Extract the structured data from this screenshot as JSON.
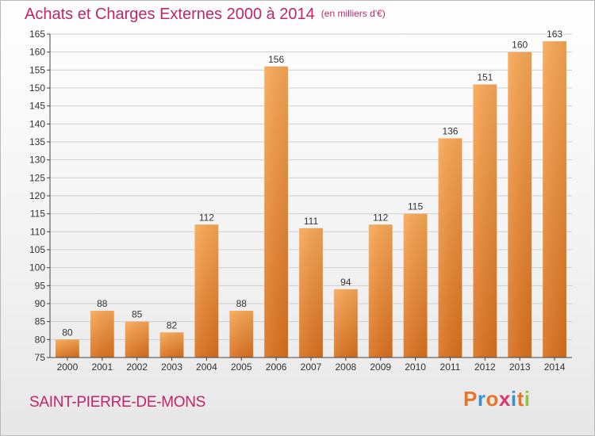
{
  "header": {
    "title": "Achats et Charges Externes 2000 à 2014",
    "unit": "(en milliers d'€)"
  },
  "footer": {
    "commune": "SAINT-PIERRE-DE-MONS",
    "logo_text": "Proxiti",
    "logo_letters": [
      {
        "ch": "P",
        "color": "#e8732a"
      },
      {
        "ch": "r",
        "color": "#3c8fd1"
      },
      {
        "ch": "o",
        "color": "#e8732a"
      },
      {
        "ch": "x",
        "color": "#d43a6e"
      },
      {
        "ch": "i",
        "color": "#3c8fd1"
      },
      {
        "ch": "t",
        "color": "#e8732a"
      },
      {
        "ch": "i",
        "color": "#8cc43f"
      }
    ]
  },
  "colors": {
    "title": "#c0256c",
    "bar_light": "#f8a755",
    "bar_dark": "#d9701e",
    "grid": "#cfcfcf",
    "axis": "#444444"
  },
  "chart_data": {
    "type": "bar",
    "title": "Achats et Charges Externes 2000 à 2014",
    "subtitle": "(en milliers d'€)",
    "xlabel": "",
    "ylabel": "",
    "categories": [
      "2000",
      "2001",
      "2002",
      "2003",
      "2004",
      "2005",
      "2006",
      "2007",
      "2008",
      "2009",
      "2010",
      "2011",
      "2012",
      "2013",
      "2014"
    ],
    "values": [
      80,
      88,
      85,
      82,
      112,
      88,
      156,
      111,
      94,
      112,
      115,
      136,
      151,
      160,
      163
    ],
    "ylim": [
      75,
      165
    ],
    "yticks": [
      75,
      80,
      85,
      90,
      95,
      100,
      105,
      110,
      115,
      120,
      125,
      130,
      135,
      140,
      145,
      150,
      155,
      160,
      165
    ],
    "grid": true,
    "data_labels": true
  }
}
